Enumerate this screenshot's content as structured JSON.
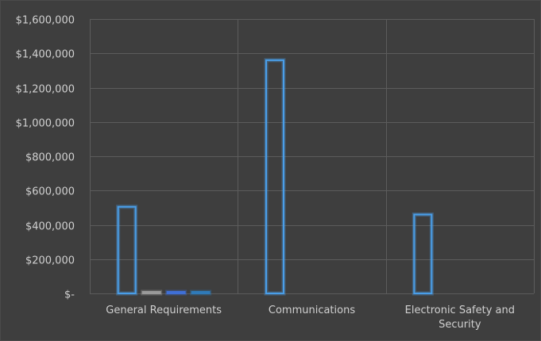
{
  "chart_data": {
    "type": "bar",
    "categories": [
      "General Requirements",
      "Communications",
      "Electronic Safety and Security"
    ],
    "category_lines": [
      [
        "General Requirements"
      ],
      [
        "Communications"
      ],
      [
        "Electronic Safety and",
        "Security"
      ]
    ],
    "series": [
      {
        "values": [
          505000,
          1360000,
          460000
        ],
        "color": "#4a9ee8"
      },
      {
        "values": [
          5000,
          0,
          0
        ],
        "color": "#9a9a9a"
      },
      {
        "values": [
          4000,
          0,
          0
        ],
        "color": "#3f6fd6"
      },
      {
        "values": [
          3000,
          0,
          0
        ],
        "color": "#2f7ab8"
      }
    ],
    "ylim": [
      0,
      1600000
    ],
    "yticks": [
      0,
      200000,
      400000,
      600000,
      800000,
      1000000,
      1200000,
      1400000,
      1600000
    ],
    "ytick_labels": [
      "$-",
      "$200,000",
      "$400,000",
      "$600,000",
      "$800,000",
      "$1,000,000",
      "$1,200,000",
      "$1,400,000",
      "$1,600,000"
    ],
    "grid": true,
    "title": "",
    "xlabel": "",
    "ylabel": ""
  }
}
